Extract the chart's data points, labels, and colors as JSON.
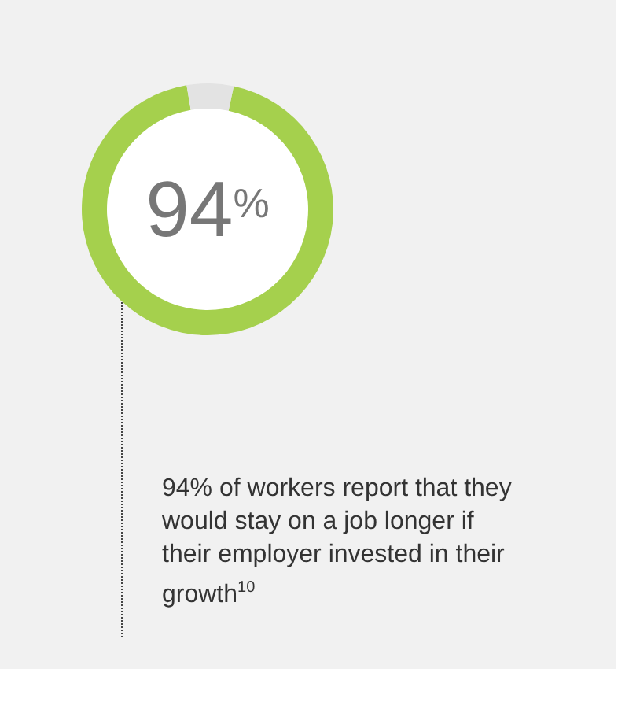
{
  "chart_data": {
    "type": "donut",
    "categories": [
      null,
      null
    ],
    "values": [
      94,
      6
    ],
    "colors": [
      "#a5d04d",
      "#e3e3e3"
    ],
    "annotations": [
      "94$^{%}$",
      "94% of workers report that they would stay on a job longer if their employer invested in their growth$^{10}$"
    ]
  }
}
